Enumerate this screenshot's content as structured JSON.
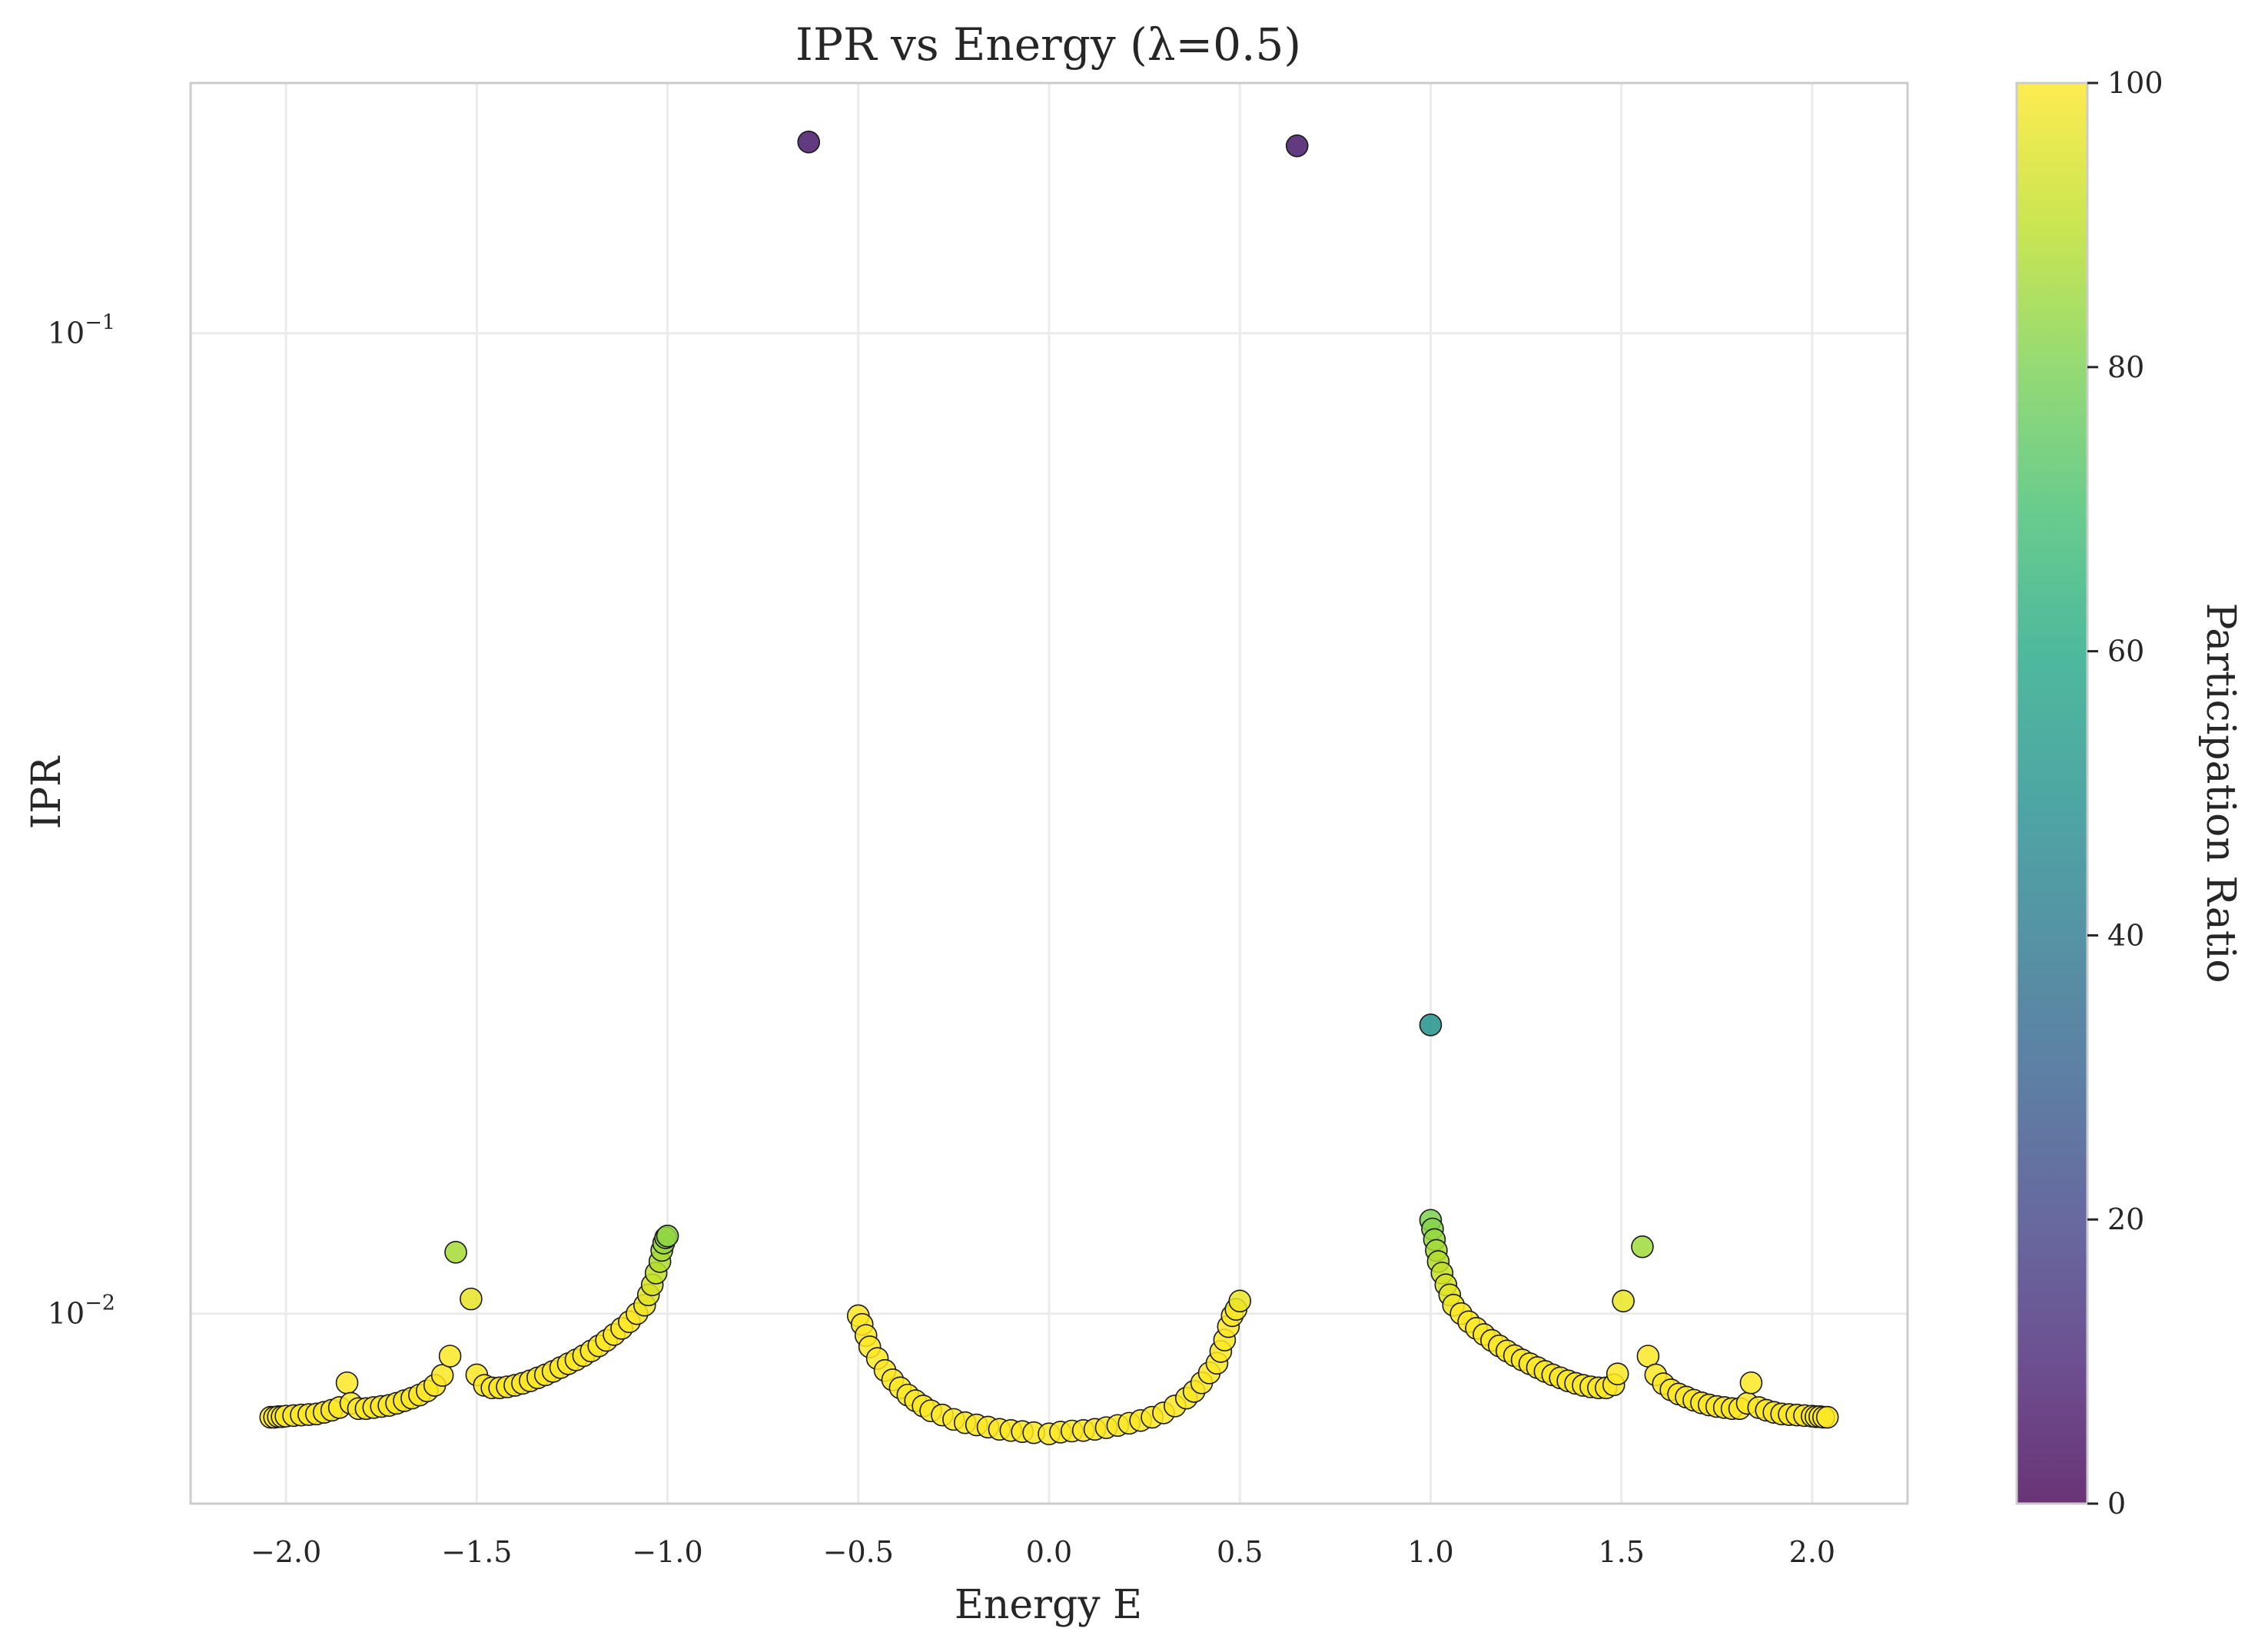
{
  "chart_data": {
    "type": "scatter",
    "title": "IPR vs Energy (λ=0.5)",
    "xlabel": "Energy E",
    "ylabel": "IPR",
    "colorbar_label": "Participation Ratio",
    "xlim": [
      -2.25,
      2.25
    ],
    "ylim": [
      0.0064,
      0.18
    ],
    "y_scale": "log",
    "grid": true,
    "colormap": "viridis",
    "color_range": [
      0,
      100
    ],
    "x_ticks": [
      -2.0,
      -1.5,
      -1.0,
      -0.5,
      0.0,
      0.5,
      1.0,
      1.5,
      2.0
    ],
    "x_tick_labels": [
      "−2.0",
      "−1.5",
      "−1.0",
      "−0.5",
      "0.0",
      "0.5",
      "1.0",
      "1.5",
      "2.0"
    ],
    "y_ticks": [
      0.01,
      0.1
    ],
    "y_tick_labels": [
      {
        "base": "10",
        "exp": "−2"
      },
      {
        "base": "10",
        "exp": "−1"
      }
    ],
    "colorbar_ticks": [
      0,
      20,
      40,
      60,
      80,
      100
    ],
    "colorbar_tick_labels": [
      "0",
      "20",
      "40",
      "60",
      "80",
      "100"
    ],
    "points": [
      {
        "x": -2.04,
        "y": 0.00784
      },
      {
        "x": -2.03,
        "y": 0.00784
      },
      {
        "x": -2.02,
        "y": 0.00785
      },
      {
        "x": -2.01,
        "y": 0.00785
      },
      {
        "x": -2.0,
        "y": 0.00786
      },
      {
        "x": -1.98,
        "y": 0.00787
      },
      {
        "x": -1.96,
        "y": 0.00788
      },
      {
        "x": -1.94,
        "y": 0.00789
      },
      {
        "x": -1.92,
        "y": 0.0079
      },
      {
        "x": -1.9,
        "y": 0.00793
      },
      {
        "x": -1.88,
        "y": 0.00797
      },
      {
        "x": -1.86,
        "y": 0.00802
      },
      {
        "x": -1.84,
        "y": 0.0085
      },
      {
        "x": -1.83,
        "y": 0.0081
      },
      {
        "x": -1.81,
        "y": 0.008
      },
      {
        "x": -1.79,
        "y": 0.008
      },
      {
        "x": -1.77,
        "y": 0.00802
      },
      {
        "x": -1.75,
        "y": 0.00804
      },
      {
        "x": -1.73,
        "y": 0.00806
      },
      {
        "x": -1.71,
        "y": 0.0081
      },
      {
        "x": -1.69,
        "y": 0.00815
      },
      {
        "x": -1.67,
        "y": 0.0082
      },
      {
        "x": -1.65,
        "y": 0.00826
      },
      {
        "x": -1.63,
        "y": 0.00834
      },
      {
        "x": -1.61,
        "y": 0.00845
      },
      {
        "x": -1.59,
        "y": 0.00865
      },
      {
        "x": -1.57,
        "y": 0.00905
      },
      {
        "x": -1.555,
        "y": 0.01155
      },
      {
        "x": -1.515,
        "y": 0.01035
      },
      {
        "x": -1.5,
        "y": 0.00866
      },
      {
        "x": -1.48,
        "y": 0.00845
      },
      {
        "x": -1.46,
        "y": 0.0084
      },
      {
        "x": -1.44,
        "y": 0.0084
      },
      {
        "x": -1.42,
        "y": 0.00842
      },
      {
        "x": -1.4,
        "y": 0.00845
      },
      {
        "x": -1.38,
        "y": 0.00849
      },
      {
        "x": -1.36,
        "y": 0.00854
      },
      {
        "x": -1.34,
        "y": 0.0086
      },
      {
        "x": -1.32,
        "y": 0.00866
      },
      {
        "x": -1.3,
        "y": 0.00873
      },
      {
        "x": -1.28,
        "y": 0.00881
      },
      {
        "x": -1.26,
        "y": 0.00889
      },
      {
        "x": -1.24,
        "y": 0.00897
      },
      {
        "x": -1.22,
        "y": 0.00906
      },
      {
        "x": -1.2,
        "y": 0.00916
      },
      {
        "x": -1.18,
        "y": 0.00927
      },
      {
        "x": -1.16,
        "y": 0.00939
      },
      {
        "x": -1.14,
        "y": 0.00952
      },
      {
        "x": -1.12,
        "y": 0.00966
      },
      {
        "x": -1.1,
        "y": 0.00981
      },
      {
        "x": -1.08,
        "y": 0.01
      },
      {
        "x": -1.06,
        "y": 0.0102
      },
      {
        "x": -1.05,
        "y": 0.01045
      },
      {
        "x": -1.04,
        "y": 0.0107
      },
      {
        "x": -1.03,
        "y": 0.011
      },
      {
        "x": -1.02,
        "y": 0.0113
      },
      {
        "x": -1.015,
        "y": 0.0116
      },
      {
        "x": -1.01,
        "y": 0.0118
      },
      {
        "x": -1.005,
        "y": 0.01195
      },
      {
        "x": -1.0,
        "y": 0.012
      },
      {
        "x": -0.63,
        "y": 0.1567
      },
      {
        "x": -0.5,
        "y": 0.00995
      },
      {
        "x": -0.49,
        "y": 0.00975
      },
      {
        "x": -0.48,
        "y": 0.0095
      },
      {
        "x": -0.47,
        "y": 0.00925
      },
      {
        "x": -0.45,
        "y": 0.009
      },
      {
        "x": -0.43,
        "y": 0.00875
      },
      {
        "x": -0.41,
        "y": 0.00856
      },
      {
        "x": -0.39,
        "y": 0.0084
      },
      {
        "x": -0.37,
        "y": 0.00826
      },
      {
        "x": -0.35,
        "y": 0.00815
      },
      {
        "x": -0.33,
        "y": 0.00805
      },
      {
        "x": -0.31,
        "y": 0.00796
      },
      {
        "x": -0.28,
        "y": 0.00788
      },
      {
        "x": -0.25,
        "y": 0.0078
      },
      {
        "x": -0.22,
        "y": 0.00774
      },
      {
        "x": -0.19,
        "y": 0.0077
      },
      {
        "x": -0.16,
        "y": 0.00766
      },
      {
        "x": -0.13,
        "y": 0.00762
      },
      {
        "x": -0.1,
        "y": 0.0076
      },
      {
        "x": -0.07,
        "y": 0.00758
      },
      {
        "x": -0.04,
        "y": 0.00756
      },
      {
        "x": 0.0,
        "y": 0.00754
      },
      {
        "x": 0.03,
        "y": 0.00757
      },
      {
        "x": 0.06,
        "y": 0.00759
      },
      {
        "x": 0.09,
        "y": 0.0076
      },
      {
        "x": 0.12,
        "y": 0.00762
      },
      {
        "x": 0.15,
        "y": 0.00765
      },
      {
        "x": 0.18,
        "y": 0.00769
      },
      {
        "x": 0.21,
        "y": 0.00773
      },
      {
        "x": 0.24,
        "y": 0.00778
      },
      {
        "x": 0.27,
        "y": 0.00784
      },
      {
        "x": 0.3,
        "y": 0.00792
      },
      {
        "x": 0.33,
        "y": 0.00805
      },
      {
        "x": 0.36,
        "y": 0.0082
      },
      {
        "x": 0.38,
        "y": 0.00833
      },
      {
        "x": 0.4,
        "y": 0.0085
      },
      {
        "x": 0.42,
        "y": 0.0087
      },
      {
        "x": 0.44,
        "y": 0.0089
      },
      {
        "x": 0.45,
        "y": 0.00915
      },
      {
        "x": 0.46,
        "y": 0.0094
      },
      {
        "x": 0.47,
        "y": 0.0097
      },
      {
        "x": 0.48,
        "y": 0.00995
      },
      {
        "x": 0.49,
        "y": 0.0101
      },
      {
        "x": 0.5,
        "y": 0.0103
      },
      {
        "x": 0.65,
        "y": 0.1553
      },
      {
        "x": 1.0,
        "y": 0.0197
      },
      {
        "x": 1.0,
        "y": 0.01245
      },
      {
        "x": 1.005,
        "y": 0.0122
      },
      {
        "x": 1.01,
        "y": 0.0119
      },
      {
        "x": 1.015,
        "y": 0.0116
      },
      {
        "x": 1.02,
        "y": 0.0113
      },
      {
        "x": 1.03,
        "y": 0.011
      },
      {
        "x": 1.04,
        "y": 0.0107
      },
      {
        "x": 1.05,
        "y": 0.01045
      },
      {
        "x": 1.06,
        "y": 0.0102
      },
      {
        "x": 1.08,
        "y": 0.01
      },
      {
        "x": 1.1,
        "y": 0.00981
      },
      {
        "x": 1.12,
        "y": 0.00966
      },
      {
        "x": 1.14,
        "y": 0.00952
      },
      {
        "x": 1.16,
        "y": 0.00939
      },
      {
        "x": 1.18,
        "y": 0.00927
      },
      {
        "x": 1.2,
        "y": 0.00916
      },
      {
        "x": 1.22,
        "y": 0.00906
      },
      {
        "x": 1.24,
        "y": 0.00897
      },
      {
        "x": 1.26,
        "y": 0.00889
      },
      {
        "x": 1.28,
        "y": 0.00881
      },
      {
        "x": 1.3,
        "y": 0.00873
      },
      {
        "x": 1.32,
        "y": 0.00866
      },
      {
        "x": 1.34,
        "y": 0.0086
      },
      {
        "x": 1.36,
        "y": 0.00854
      },
      {
        "x": 1.38,
        "y": 0.00849
      },
      {
        "x": 1.4,
        "y": 0.00845
      },
      {
        "x": 1.42,
        "y": 0.00842
      },
      {
        "x": 1.44,
        "y": 0.0084
      },
      {
        "x": 1.46,
        "y": 0.0084
      },
      {
        "x": 1.48,
        "y": 0.00846
      },
      {
        "x": 1.49,
        "y": 0.00868
      },
      {
        "x": 1.505,
        "y": 0.0103
      },
      {
        "x": 1.555,
        "y": 0.0117
      },
      {
        "x": 1.57,
        "y": 0.00905
      },
      {
        "x": 1.59,
        "y": 0.00866
      },
      {
        "x": 1.61,
        "y": 0.00848
      },
      {
        "x": 1.63,
        "y": 0.00836
      },
      {
        "x": 1.65,
        "y": 0.00828
      },
      {
        "x": 1.67,
        "y": 0.00822
      },
      {
        "x": 1.69,
        "y": 0.00816
      },
      {
        "x": 1.71,
        "y": 0.00811
      },
      {
        "x": 1.73,
        "y": 0.00807
      },
      {
        "x": 1.75,
        "y": 0.00804
      },
      {
        "x": 1.77,
        "y": 0.00802
      },
      {
        "x": 1.79,
        "y": 0.008
      },
      {
        "x": 1.81,
        "y": 0.008
      },
      {
        "x": 1.83,
        "y": 0.0081
      },
      {
        "x": 1.84,
        "y": 0.0085
      },
      {
        "x": 1.86,
        "y": 0.00802
      },
      {
        "x": 1.88,
        "y": 0.00797
      },
      {
        "x": 1.9,
        "y": 0.00793
      },
      {
        "x": 1.92,
        "y": 0.0079
      },
      {
        "x": 1.94,
        "y": 0.00789
      },
      {
        "x": 1.96,
        "y": 0.00788
      },
      {
        "x": 1.98,
        "y": 0.00787
      },
      {
        "x": 2.0,
        "y": 0.00786
      },
      {
        "x": 2.01,
        "y": 0.00785
      },
      {
        "x": 2.02,
        "y": 0.00785
      },
      {
        "x": 2.03,
        "y": 0.00784
      },
      {
        "x": 2.04,
        "y": 0.00784
      }
    ]
  }
}
